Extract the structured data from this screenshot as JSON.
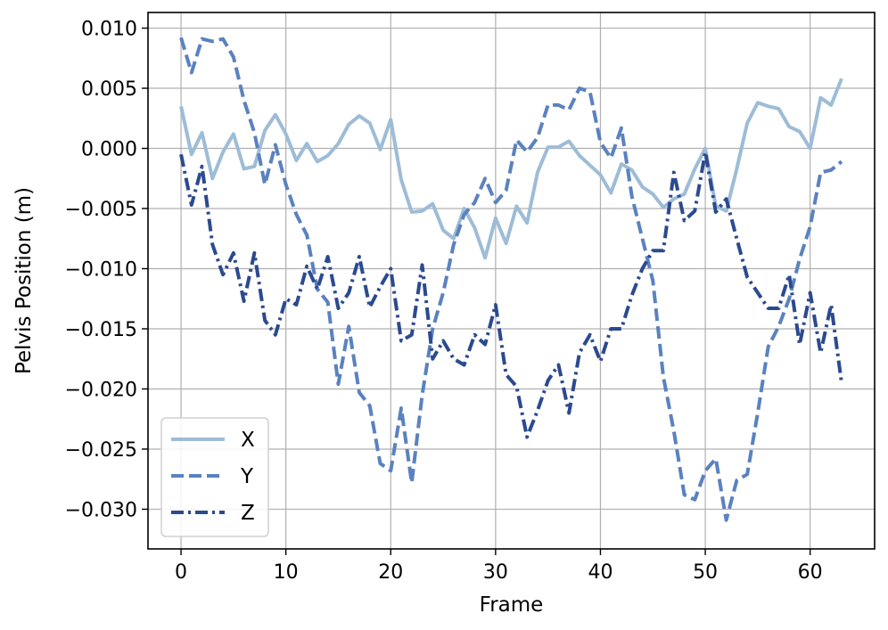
{
  "chart_data": {
    "type": "line",
    "title": "",
    "xlabel": "Frame",
    "ylabel": "Pelvis Position (m)",
    "xlim": [
      -3.15,
      66.15
    ],
    "ylim": [
      -0.0333,
      0.0113
    ],
    "xticks": [
      0,
      10,
      20,
      30,
      40,
      50,
      60
    ],
    "yticks": [
      0.01,
      0.005,
      0.0,
      -0.005,
      -0.01,
      -0.015,
      -0.02,
      -0.025,
      -0.03
    ],
    "ytick_labels": [
      "0.010",
      "0.005",
      "0.000",
      "−0.005",
      "−0.010",
      "−0.015",
      "−0.020",
      "−0.025",
      "−0.030"
    ],
    "grid": true,
    "legend_position": "lower-left",
    "series": [
      {
        "name": "X",
        "color": "#9dbcd7",
        "dash": "solid",
        "values": [
          0.0035,
          -0.0005,
          0.0013,
          -0.0025,
          -0.0003,
          0.0012,
          -0.0017,
          -0.0015,
          0.0015,
          0.0028,
          0.0012,
          -0.001,
          0.0004,
          -0.0011,
          -0.0006,
          0.0004,
          0.002,
          0.0027,
          0.0021,
          -0.0001,
          0.0024,
          -0.0026,
          -0.0053,
          -0.0052,
          -0.0046,
          -0.0068,
          -0.0075,
          -0.005,
          -0.0066,
          -0.0091,
          -0.0058,
          -0.0079,
          -0.0048,
          -0.0062,
          -0.002,
          0.0001,
          0.0001,
          0.0006,
          -0.0006,
          -0.0014,
          -0.0022,
          -0.0037,
          -0.0013,
          -0.0018,
          -0.0032,
          -0.0038,
          -0.0049,
          -0.0042,
          -0.0038,
          -0.0017,
          0.0,
          -0.0048,
          -0.0052,
          -0.0017,
          0.0021,
          0.0038,
          0.0035,
          0.0033,
          0.0018,
          0.0014,
          0.0,
          0.0042,
          0.0036,
          0.0058
        ]
      },
      {
        "name": "Y",
        "color": "#5a82bf",
        "dash": "dashed",
        "values": [
          0.0092,
          0.0063,
          0.0091,
          0.0089,
          0.0091,
          0.0076,
          0.004,
          0.0013,
          -0.003,
          0.0003,
          -0.003,
          -0.0055,
          -0.0072,
          -0.0117,
          -0.0128,
          -0.0196,
          -0.0148,
          -0.0203,
          -0.0214,
          -0.0262,
          -0.0268,
          -0.0216,
          -0.0278,
          -0.0205,
          -0.015,
          -0.012,
          -0.008,
          -0.0055,
          -0.0045,
          -0.0025,
          -0.0045,
          -0.0035,
          0.0007,
          -0.0003,
          0.0009,
          0.0036,
          0.0036,
          0.0032,
          0.005,
          0.0047,
          0.0005,
          -0.0008,
          0.0017,
          -0.004,
          -0.0075,
          -0.011,
          -0.019,
          -0.0235,
          -0.0288,
          -0.0292,
          -0.0268,
          -0.0258,
          -0.0309,
          -0.0276,
          -0.0271,
          -0.022,
          -0.0165,
          -0.0148,
          -0.0125,
          -0.0092,
          -0.0065,
          -0.002,
          -0.0018,
          -0.0011
        ]
      },
      {
        "name": "Z",
        "color": "#2b4a8f",
        "dash": "dashdot",
        "values": [
          -0.0005,
          -0.0047,
          -0.0015,
          -0.008,
          -0.0105,
          -0.0087,
          -0.0127,
          -0.0087,
          -0.0143,
          -0.0155,
          -0.0125,
          -0.013,
          -0.0098,
          -0.0117,
          -0.009,
          -0.0133,
          -0.012,
          -0.009,
          -0.0132,
          -0.0115,
          -0.01,
          -0.016,
          -0.0155,
          -0.0097,
          -0.0175,
          -0.016,
          -0.0175,
          -0.018,
          -0.0155,
          -0.0163,
          -0.013,
          -0.0188,
          -0.0198,
          -0.024,
          -0.0218,
          -0.0193,
          -0.018,
          -0.022,
          -0.017,
          -0.0155,
          -0.0177,
          -0.015,
          -0.015,
          -0.0122,
          -0.01,
          -0.0085,
          -0.0085,
          -0.002,
          -0.006,
          -0.0052,
          -0.0003,
          -0.0053,
          -0.0042,
          -0.0075,
          -0.0107,
          -0.012,
          -0.0133,
          -0.0133,
          -0.0105,
          -0.0163,
          -0.012,
          -0.017,
          -0.013,
          -0.0195
        ]
      }
    ]
  }
}
